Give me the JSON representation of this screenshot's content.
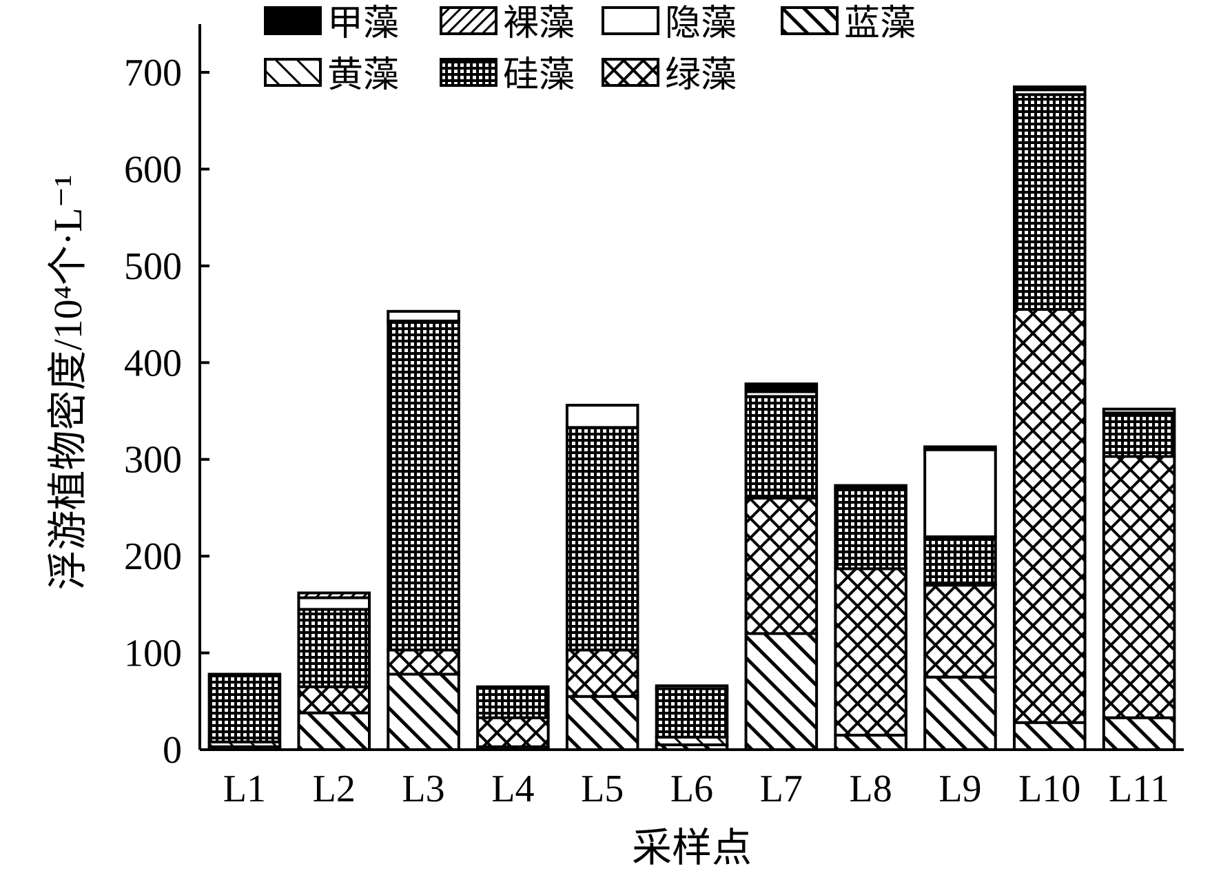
{
  "chart_data": {
    "type": "bar",
    "stacked": true,
    "title": "",
    "xlabel": "采样点",
    "ylabel": "浮游植物密度/10⁴个·L⁻¹",
    "ylim": [
      0,
      700
    ],
    "yticks": [
      0,
      100,
      200,
      300,
      400,
      500,
      600,
      700
    ],
    "grid": false,
    "legend_position": "top",
    "categories": [
      "L1",
      "L2",
      "L3",
      "L4",
      "L5",
      "L6",
      "L7",
      "L8",
      "L9",
      "L10",
      "L11"
    ],
    "series": [
      {
        "name": "蓝藻",
        "pattern": "diag-wide",
        "values": [
          3,
          38,
          78,
          3,
          55,
          5,
          120,
          15,
          75,
          28,
          33
        ]
      },
      {
        "name": "黄藻",
        "pattern": "diag-thin",
        "values": [
          5,
          0,
          0,
          0,
          0,
          8,
          0,
          0,
          0,
          0,
          0
        ]
      },
      {
        "name": "绿藻",
        "pattern": "crosshatch",
        "values": [
          0,
          27,
          25,
          30,
          48,
          0,
          140,
          172,
          95,
          427,
          270
        ]
      },
      {
        "name": "硅藻",
        "pattern": "grid",
        "values": [
          70,
          80,
          340,
          32,
          230,
          50,
          105,
          82,
          50,
          222,
          45
        ]
      },
      {
        "name": "隐藻",
        "pattern": "white",
        "values": [
          0,
          12,
          10,
          0,
          23,
          3,
          5,
          0,
          90,
          5,
          4
        ]
      },
      {
        "name": "裸藻",
        "pattern": "diag-back",
        "values": [
          0,
          5,
          0,
          0,
          0,
          0,
          0,
          0,
          0,
          0,
          0
        ]
      },
      {
        "name": "甲藻",
        "pattern": "solid",
        "values": [
          0,
          0,
          0,
          0,
          0,
          0,
          8,
          4,
          3,
          3,
          0
        ]
      }
    ],
    "legend_rows": [
      [
        "甲藻",
        "裸藻",
        "隐藻",
        "蓝藻"
      ],
      [
        "黄藻",
        "硅藻",
        "绿藻"
      ]
    ]
  }
}
